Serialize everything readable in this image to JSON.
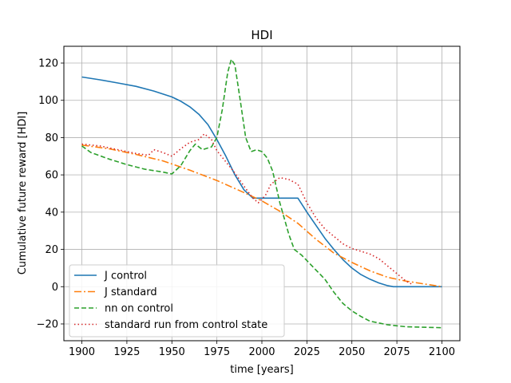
{
  "chart_data": {
    "type": "line",
    "title": "HDI",
    "xlabel": "time [years]",
    "ylabel": "Cumulative future reward [HDI]",
    "xlim": [
      1890,
      2110
    ],
    "ylim": [
      -29,
      129
    ],
    "xticks": [
      1900,
      1925,
      1950,
      1975,
      2000,
      2025,
      2050,
      2075,
      2100
    ],
    "yticks": [
      -20,
      0,
      20,
      40,
      60,
      80,
      100,
      120
    ],
    "xtick_labels": [
      "1900",
      "1925",
      "1950",
      "1975",
      "2000",
      "2025",
      "2050",
      "2075",
      "2100"
    ],
    "ytick_labels": [
      "−20",
      "0",
      "20",
      "40",
      "60",
      "80",
      "100",
      "120"
    ],
    "grid": true,
    "legend_position": "lower-left",
    "series": [
      {
        "name": "J control",
        "color": "#1f77b4",
        "style": "solid",
        "points": [
          [
            1900,
            112.5
          ],
          [
            1910,
            111
          ],
          [
            1920,
            109.3
          ],
          [
            1930,
            107.5
          ],
          [
            1940,
            105
          ],
          [
            1950,
            101.8
          ],
          [
            1955,
            99.5
          ],
          [
            1960,
            96.5
          ],
          [
            1965,
            92.5
          ],
          [
            1970,
            87
          ],
          [
            1975,
            79
          ],
          [
            1980,
            70
          ],
          [
            1985,
            60
          ],
          [
            1990,
            52
          ],
          [
            1995,
            47.5
          ],
          [
            2000,
            47.5
          ],
          [
            2010,
            47.5
          ],
          [
            2020,
            47.5
          ],
          [
            2025,
            40
          ],
          [
            2030,
            33
          ],
          [
            2035,
            26
          ],
          [
            2040,
            20
          ],
          [
            2045,
            14.5
          ],
          [
            2050,
            10
          ],
          [
            2055,
            6.5
          ],
          [
            2060,
            4
          ],
          [
            2065,
            2
          ],
          [
            2070,
            0.5
          ],
          [
            2073,
            0
          ],
          [
            2100,
            0
          ]
        ]
      },
      {
        "name": "J standard",
        "color": "#ff7f0e",
        "style": "dashdot",
        "points": [
          [
            1900,
            76
          ],
          [
            1915,
            74
          ],
          [
            1930,
            71
          ],
          [
            1945,
            67.5
          ],
          [
            1960,
            62.5
          ],
          [
            1975,
            57
          ],
          [
            1990,
            50.5
          ],
          [
            2000,
            46
          ],
          [
            2010,
            40.5
          ],
          [
            2020,
            34
          ],
          [
            2030,
            25.5
          ],
          [
            2040,
            18
          ],
          [
            2050,
            13
          ],
          [
            2060,
            8.5
          ],
          [
            2070,
            5
          ],
          [
            2080,
            3
          ],
          [
            2090,
            1.5
          ],
          [
            2100,
            0
          ]
        ]
      },
      {
        "name": "nn on control",
        "color": "#2ca02c",
        "style": "dashed",
        "points": [
          [
            1900,
            75.5
          ],
          [
            1905,
            72
          ],
          [
            1915,
            68.5
          ],
          [
            1925,
            65.5
          ],
          [
            1935,
            63
          ],
          [
            1945,
            61.5
          ],
          [
            1950,
            60.5
          ],
          [
            1955,
            65
          ],
          [
            1960,
            73
          ],
          [
            1963,
            76.5
          ],
          [
            1967,
            73.5
          ],
          [
            1972,
            75
          ],
          [
            1975,
            80
          ],
          [
            1978,
            95
          ],
          [
            1981,
            115
          ],
          [
            1983,
            122
          ],
          [
            1985,
            119
          ],
          [
            1988,
            100
          ],
          [
            1991,
            80
          ],
          [
            1994,
            72.5
          ],
          [
            1997,
            73.5
          ],
          [
            2000,
            72.5
          ],
          [
            2003,
            69
          ],
          [
            2006,
            62
          ],
          [
            2010,
            45
          ],
          [
            2015,
            28
          ],
          [
            2018,
            20
          ],
          [
            2022,
            17
          ],
          [
            2025,
            14
          ],
          [
            2030,
            9
          ],
          [
            2035,
            4
          ],
          [
            2040,
            -3
          ],
          [
            2045,
            -9
          ],
          [
            2050,
            -13
          ],
          [
            2055,
            -16
          ],
          [
            2060,
            -18.5
          ],
          [
            2070,
            -20.5
          ],
          [
            2080,
            -21.5
          ],
          [
            2100,
            -22
          ]
        ]
      },
      {
        "name": "standard run from control state",
        "color": "#d62728",
        "style": "dotted",
        "points": [
          [
            1900,
            76.5
          ],
          [
            1910,
            75.5
          ],
          [
            1920,
            73.5
          ],
          [
            1930,
            71.5
          ],
          [
            1937,
            70.5
          ],
          [
            1940,
            73.5
          ],
          [
            1945,
            72
          ],
          [
            1950,
            70
          ],
          [
            1955,
            74
          ],
          [
            1960,
            77.5
          ],
          [
            1965,
            79
          ],
          [
            1968,
            82
          ],
          [
            1972,
            79
          ],
          [
            1975,
            73
          ],
          [
            1980,
            67
          ],
          [
            1985,
            61
          ],
          [
            1990,
            54
          ],
          [
            1995,
            47.5
          ],
          [
            1998,
            45
          ],
          [
            2002,
            49
          ],
          [
            2005,
            55
          ],
          [
            2010,
            58.5
          ],
          [
            2015,
            57.5
          ],
          [
            2020,
            55
          ],
          [
            2025,
            45
          ],
          [
            2030,
            37
          ],
          [
            2035,
            31
          ],
          [
            2040,
            27
          ],
          [
            2045,
            23
          ],
          [
            2050,
            20.5
          ],
          [
            2060,
            17.5
          ],
          [
            2065,
            15
          ],
          [
            2070,
            11
          ],
          [
            2075,
            7
          ],
          [
            2080,
            3
          ],
          [
            2083,
            1.5
          ]
        ]
      }
    ]
  }
}
